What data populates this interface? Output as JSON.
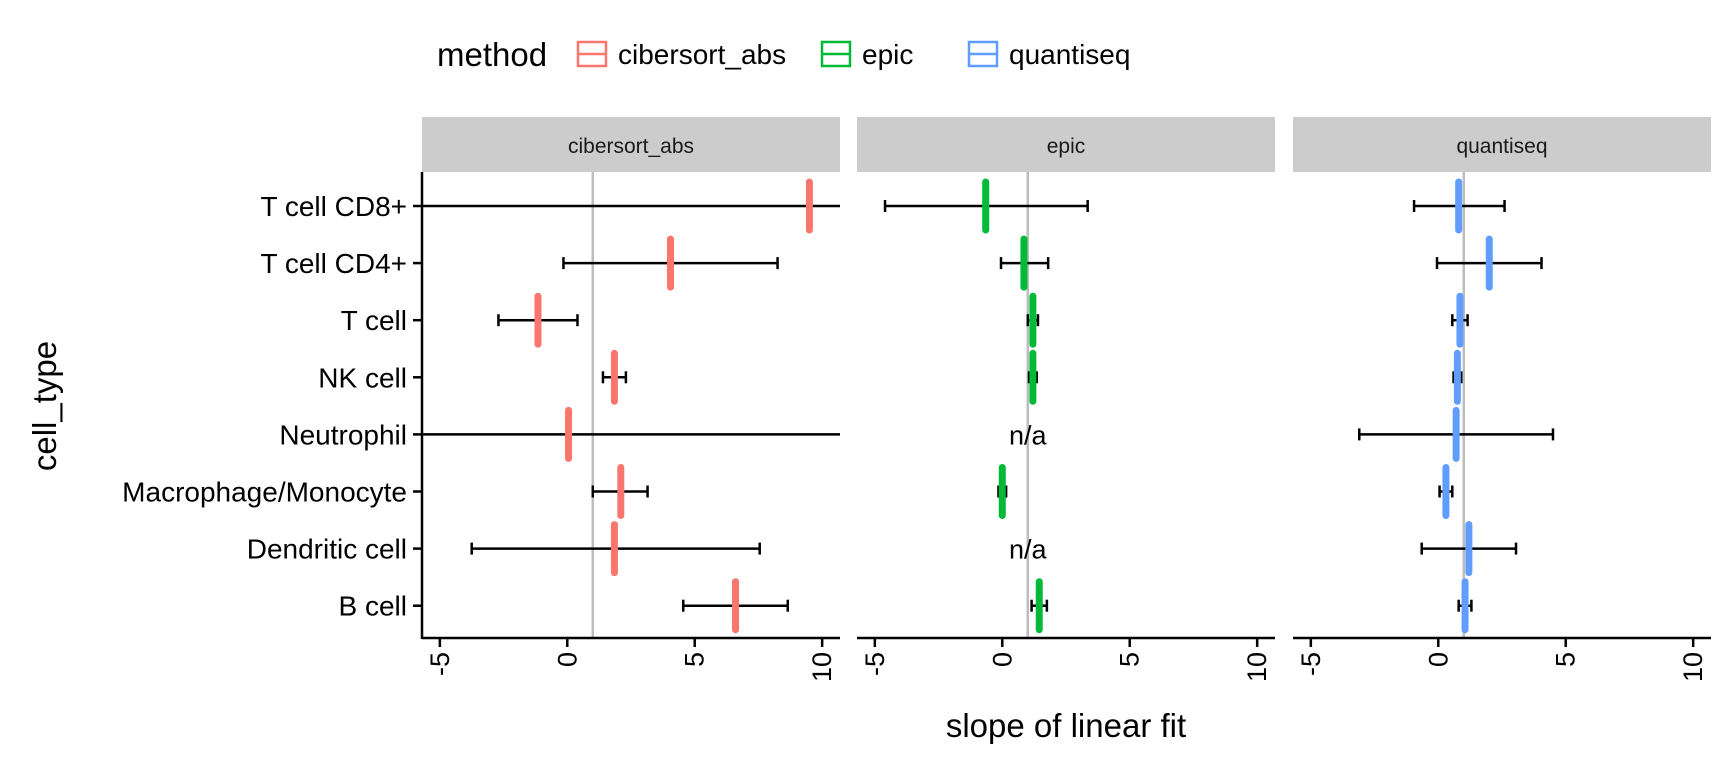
{
  "legend": {
    "title": "method",
    "entries": [
      {
        "label": "cibersort_abs",
        "color": "#f8766d"
      },
      {
        "label": "epic",
        "color": "#00ba38"
      },
      {
        "label": "quantiseq",
        "color": "#619cff"
      }
    ]
  },
  "chart_data": {
    "type": "scatter",
    "subtype": "faceted point-range / forest plot",
    "title": "",
    "xlabel": "slope of linear fit",
    "ylabel": "cell_type",
    "xlim": [
      -5.7,
      10.7
    ],
    "xticks": [
      -5,
      0,
      5,
      10
    ],
    "xtick_labels": [
      "-5",
      "0",
      "5",
      "10"
    ],
    "reference_line_x": 1,
    "legend_position": "top-left",
    "grid": false,
    "categories": [
      "T cell CD8+",
      "T cell CD4+",
      "T cell",
      "NK cell",
      "Neutrophil",
      "Macrophage/Monocyte",
      "Dendritic cell",
      "B cell"
    ],
    "na_label": "n/a",
    "facets": [
      {
        "name": "cibersort_abs",
        "color": "#f8766d",
        "points": [
          {
            "cell_type": "T cell CD8+",
            "estimate": 9.5,
            "lower": -6.5,
            "upper": 11.5,
            "na": false
          },
          {
            "cell_type": "T cell CD4+",
            "estimate": 4.05,
            "lower": -0.15,
            "upper": 8.25,
            "na": false
          },
          {
            "cell_type": "T cell",
            "estimate": -1.15,
            "lower": -2.7,
            "upper": 0.4,
            "na": false
          },
          {
            "cell_type": "NK cell",
            "estimate": 1.85,
            "lower": 1.4,
            "upper": 2.3,
            "na": false
          },
          {
            "cell_type": "Neutrophil",
            "estimate": 0.05,
            "lower": -6.5,
            "upper": 11.5,
            "na": false
          },
          {
            "cell_type": "Macrophage/Monocyte",
            "estimate": 2.1,
            "lower": 1.0,
            "upper": 3.15,
            "na": false
          },
          {
            "cell_type": "Dendritic cell",
            "estimate": 1.85,
            "lower": -3.75,
            "upper": 7.55,
            "na": false
          },
          {
            "cell_type": "B cell",
            "estimate": 6.6,
            "lower": 4.55,
            "upper": 8.65,
            "na": false
          }
        ]
      },
      {
        "name": "epic",
        "color": "#00ba38",
        "points": [
          {
            "cell_type": "T cell CD8+",
            "estimate": -0.65,
            "lower": -4.6,
            "upper": 3.35,
            "na": false
          },
          {
            "cell_type": "T cell CD4+",
            "estimate": 0.85,
            "lower": -0.05,
            "upper": 1.8,
            "na": false
          },
          {
            "cell_type": "T cell",
            "estimate": 1.2,
            "lower": 1.0,
            "upper": 1.4,
            "na": false
          },
          {
            "cell_type": "NK cell",
            "estimate": 1.2,
            "lower": 1.05,
            "upper": 1.35,
            "na": false
          },
          {
            "cell_type": "Neutrophil",
            "estimate": null,
            "lower": null,
            "upper": null,
            "na": true
          },
          {
            "cell_type": "Macrophage/Monocyte",
            "estimate": 0.0,
            "lower": -0.15,
            "upper": 0.15,
            "na": false
          },
          {
            "cell_type": "Dendritic cell",
            "estimate": null,
            "lower": null,
            "upper": null,
            "na": true
          },
          {
            "cell_type": "B cell",
            "estimate": 1.45,
            "lower": 1.15,
            "upper": 1.75,
            "na": false
          }
        ]
      },
      {
        "name": "quantiseq",
        "color": "#619cff",
        "points": [
          {
            "cell_type": "T cell CD8+",
            "estimate": 0.8,
            "lower": -0.95,
            "upper": 2.6,
            "na": false
          },
          {
            "cell_type": "T cell CD4+",
            "estimate": 2.0,
            "lower": -0.05,
            "upper": 4.05,
            "na": false
          },
          {
            "cell_type": "T cell",
            "estimate": 0.85,
            "lower": 0.55,
            "upper": 1.15,
            "na": false
          },
          {
            "cell_type": "NK cell",
            "estimate": 0.75,
            "lower": 0.6,
            "upper": 0.9,
            "na": false
          },
          {
            "cell_type": "Neutrophil",
            "estimate": 0.7,
            "lower": -3.1,
            "upper": 4.5,
            "na": false
          },
          {
            "cell_type": "Macrophage/Monocyte",
            "estimate": 0.3,
            "lower": 0.05,
            "upper": 0.55,
            "na": false
          },
          {
            "cell_type": "Dendritic cell",
            "estimate": 1.2,
            "lower": -0.65,
            "upper": 3.05,
            "na": false
          },
          {
            "cell_type": "B cell",
            "estimate": 1.05,
            "lower": 0.8,
            "upper": 1.3,
            "na": false
          }
        ]
      }
    ]
  }
}
